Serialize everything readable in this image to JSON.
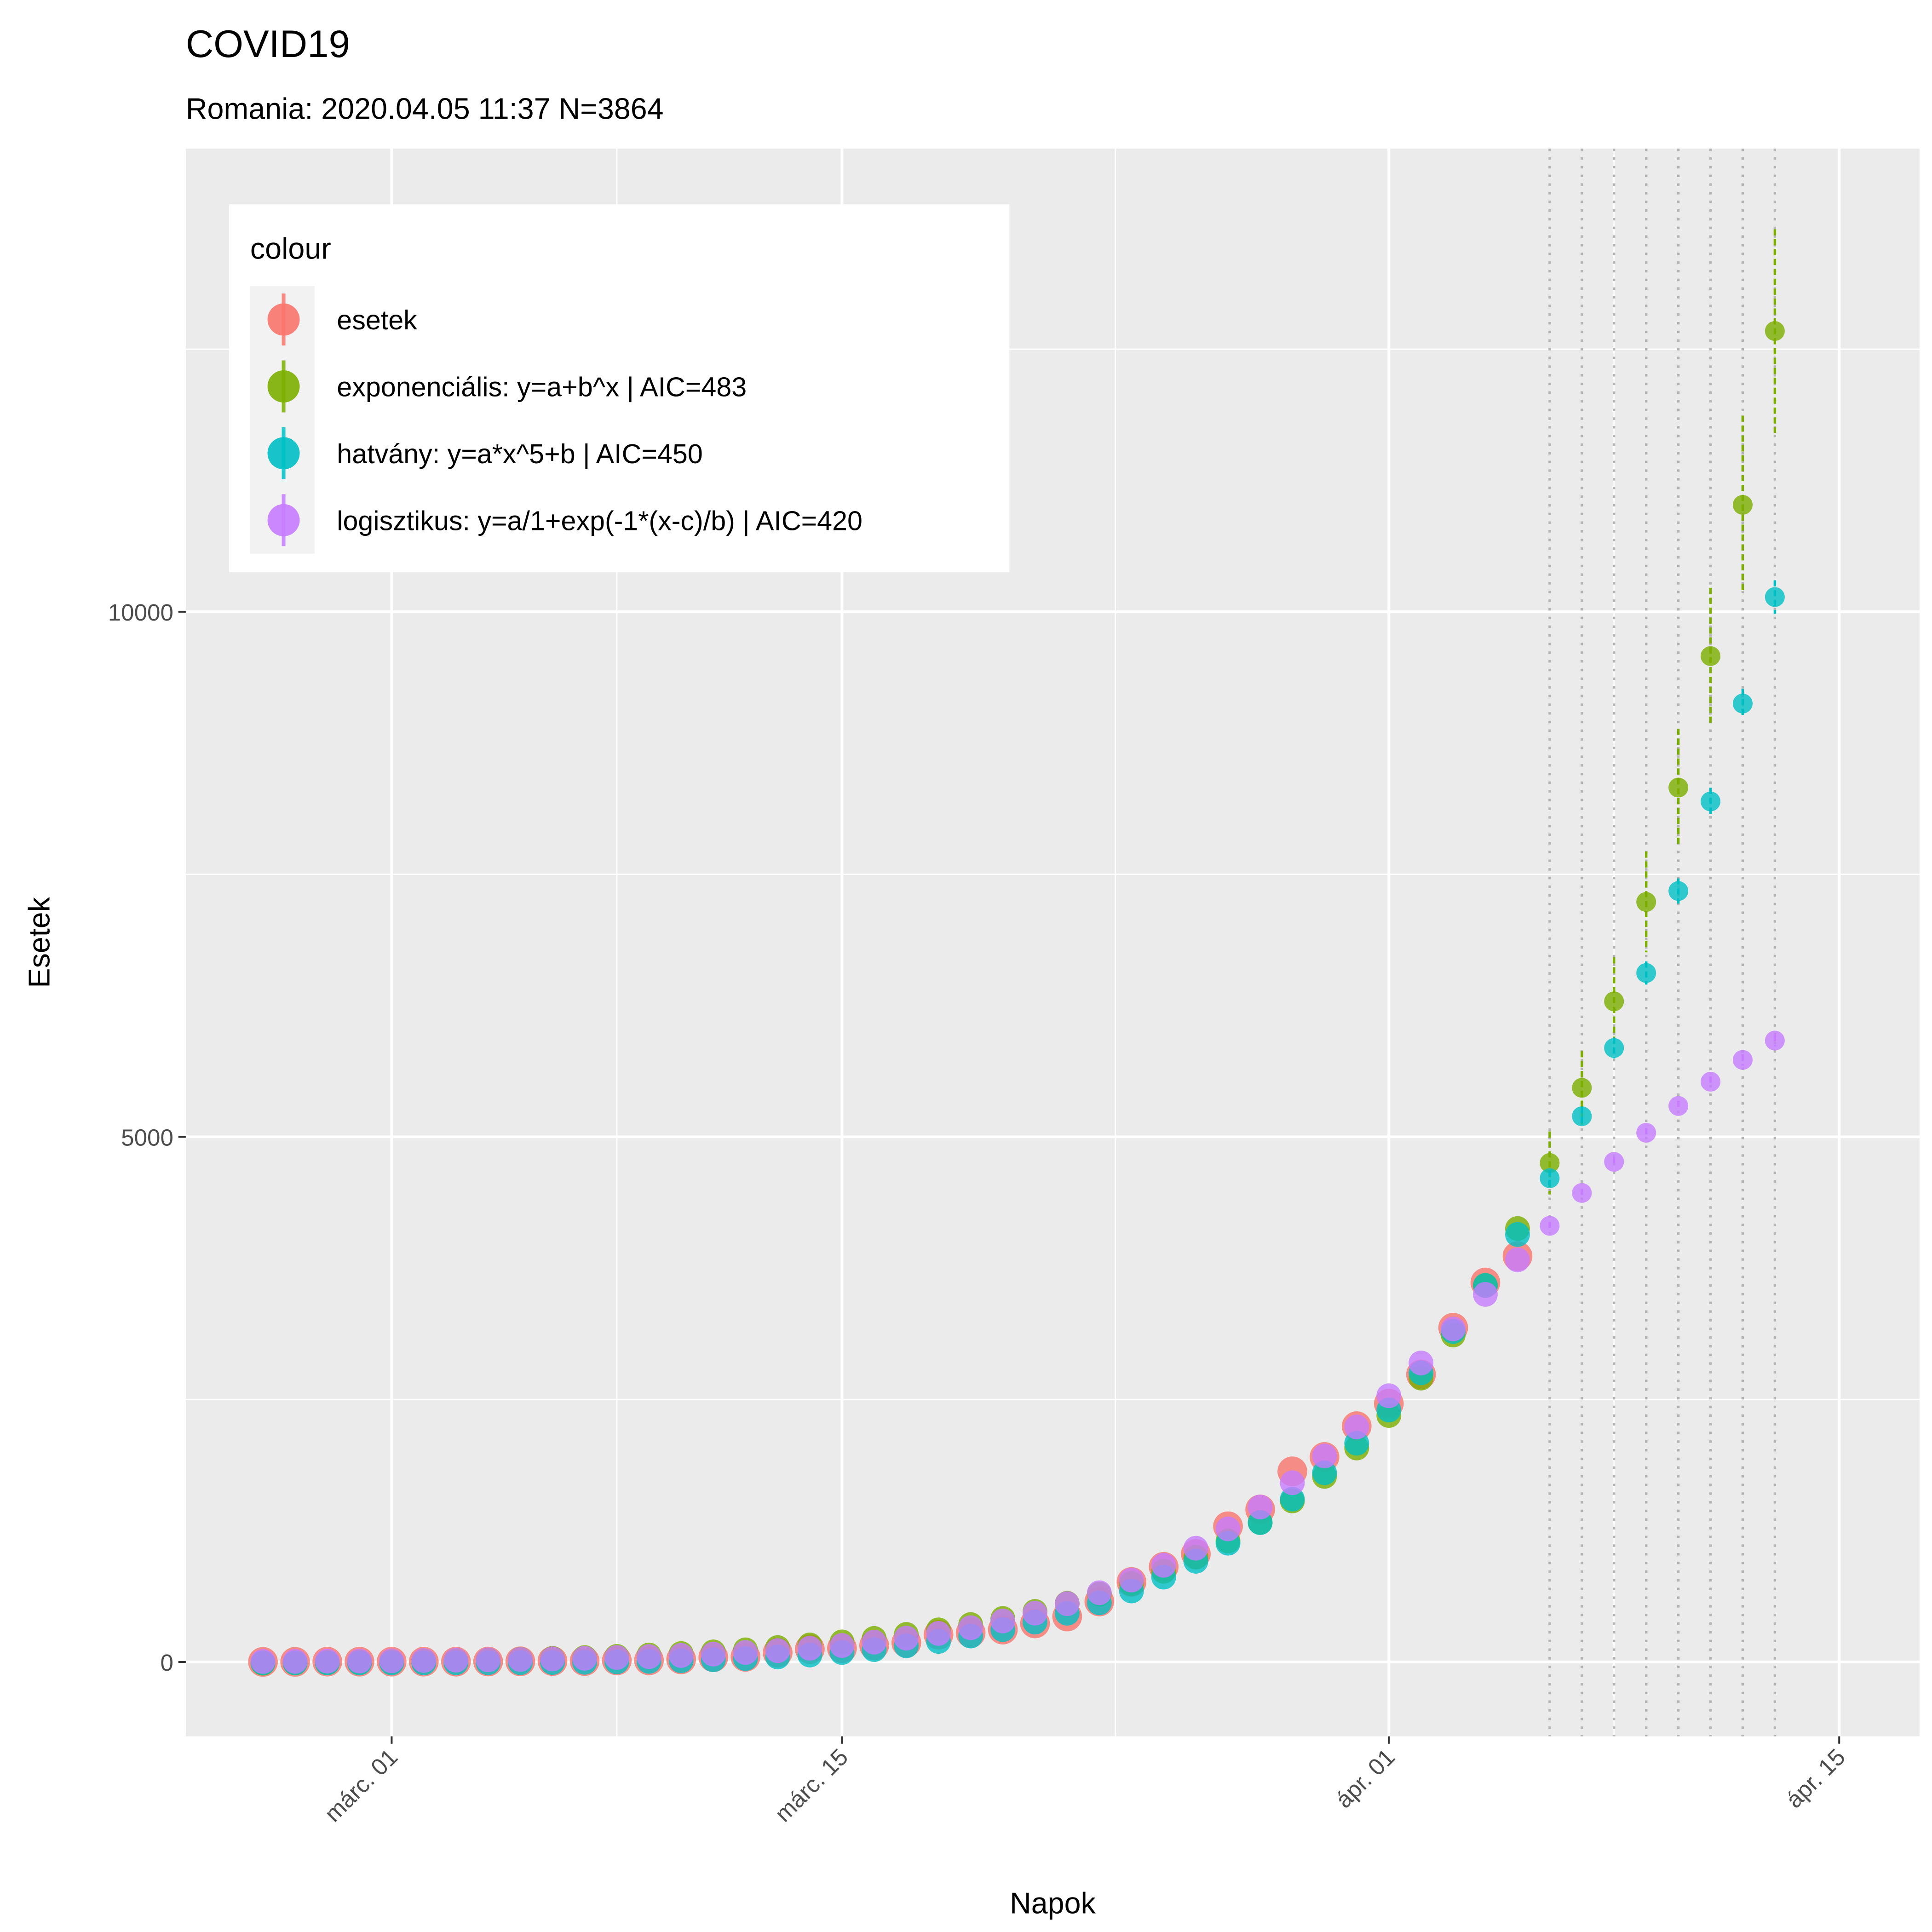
{
  "chart_data": {
    "type": "scatter",
    "title": "COVID19",
    "subtitle": "Romania: 2020.04.05 11:37 N=3864",
    "xlabel": "Napok",
    "ylabel": "Esetek",
    "x_start_date": "2020-02-26",
    "xlim_days": [
      -2.4,
      51.5
    ],
    "ylim": [
      -708,
      14410
    ],
    "x_ticks": [
      {
        "day": 4,
        "label": "márc. 01"
      },
      {
        "day": 18,
        "label": "márc. 15"
      },
      {
        "day": 35,
        "label": "ápr. 01"
      },
      {
        "day": 49,
        "label": "ápr. 15"
      }
    ],
    "x_minor_days": [
      11,
      26.5,
      42
    ],
    "y_ticks": [
      {
        "value": 0,
        "label": "0"
      },
      {
        "value": 5000,
        "label": "5000"
      },
      {
        "value": 10000,
        "label": "10000"
      }
    ],
    "y_minor": [
      2500,
      7500,
      12500
    ],
    "forecast_days": [
      40,
      41,
      42,
      43,
      44,
      45,
      46,
      47
    ],
    "grid": true,
    "legend": {
      "title": "colour",
      "position": "top-left"
    },
    "series": [
      {
        "name": "esetek",
        "color": "#F8766D",
        "start_day": 0,
        "values": [
          1,
          1,
          3,
          3,
          3,
          3,
          3,
          4,
          6,
          9,
          9,
          15,
          15,
          25,
          45,
          49,
          89,
          123,
          131,
          158,
          184,
          260,
          277,
          308,
          367,
          433,
          576,
          762,
          906,
          1029,
          1292,
          1452,
          1815,
          1952,
          2245,
          2460,
          2738,
          3183,
          3613,
          3864
        ]
      },
      {
        "name": "exponenciális: y=a+b^x | AIC=483",
        "color": "#7CAE00",
        "start_day": 0,
        "values": [
          -12,
          -9,
          -6,
          -3,
          1,
          6,
          11,
          18,
          25,
          33,
          42,
          53,
          66,
          80,
          96,
          115,
          137,
          162,
          191,
          224,
          262,
          306,
          356,
          414,
          481,
          558,
          646,
          747,
          864,
          998,
          1152,
          1329,
          1533,
          1767,
          2037,
          2347,
          2703,
          3113,
          3585,
          4127,
          4751,
          5467,
          6290,
          7237,
          8326,
          9578,
          11018,
          12673
        ],
        "error": {
          "40": 300,
          "41": 350,
          "42": 420,
          "43": 480,
          "44": 560,
          "45": 650,
          "46": 850,
          "47": 970
        }
      },
      {
        "name": "hatvány: y=a*x^5+b | AIC=450",
        "color": "#00BFC4",
        "start_day": 0,
        "values": [
          -9,
          -9,
          -9,
          -9,
          -9,
          -9,
          -8,
          -8,
          -7,
          -5,
          -3,
          1,
          6,
          12,
          21,
          33,
          48,
          66,
          90,
          118,
          154,
          196,
          247,
          308,
          380,
          464,
          563,
          676,
          808,
          959,
          1131,
          1327,
          1550,
          1801,
          2083,
          2399,
          2753,
          3147,
          3585,
          4070,
          4606,
          5196,
          5846,
          6560,
          7341,
          8194,
          9126,
          10140
        ],
        "error": {
          "40": 80,
          "41": 90,
          "42": 100,
          "43": 110,
          "44": 120,
          "45": 130,
          "46": 140,
          "47": 160
        }
      },
      {
        "name": "logisztikus: y=a/1+exp(-1*(x-c)/b) | AIC=420",
        "color": "#C77CFF",
        "start_day": 0,
        "values": [
          5,
          6,
          8,
          9,
          11,
          14,
          17,
          20,
          24,
          29,
          35,
          43,
          51,
          62,
          75,
          90,
          108,
          131,
          157,
          189,
          227,
          272,
          326,
          390,
          465,
          555,
          659,
          780,
          921,
          1083,
          1267,
          1475,
          1706,
          1961,
          2238,
          2535,
          2847,
          3171,
          3500,
          3829,
          4153,
          4466,
          4762,
          5039,
          5294,
          5525,
          5733,
          5917
        ],
        "error": {
          "40": 40,
          "41": 40,
          "42": 45,
          "43": 45,
          "44": 50,
          "45": 50,
          "46": 55,
          "47": 55
        }
      }
    ]
  }
}
